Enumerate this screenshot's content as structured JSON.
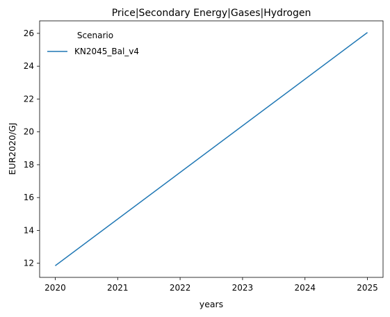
{
  "chart_data": {
    "type": "line",
    "title": "Price|Secondary Energy|Gases|Hydrogen",
    "xlabel": "years",
    "ylabel": "EUR2020/GJ",
    "x": [
      2020,
      2025
    ],
    "series": [
      {
        "name": "KN2045_Bal_v4",
        "values": [
          11.85,
          26.05
        ],
        "color": "#1f77b4"
      }
    ],
    "xlim": [
      2019.75,
      2025.25
    ],
    "ylim": [
      11.14,
      26.76
    ],
    "xticks": [
      2020,
      2021,
      2022,
      2023,
      2024,
      2025
    ],
    "yticks": [
      12,
      14,
      16,
      18,
      20,
      22,
      24,
      26
    ],
    "legend": {
      "title": "Scenario",
      "position": "top-left"
    },
    "grid": false
  }
}
